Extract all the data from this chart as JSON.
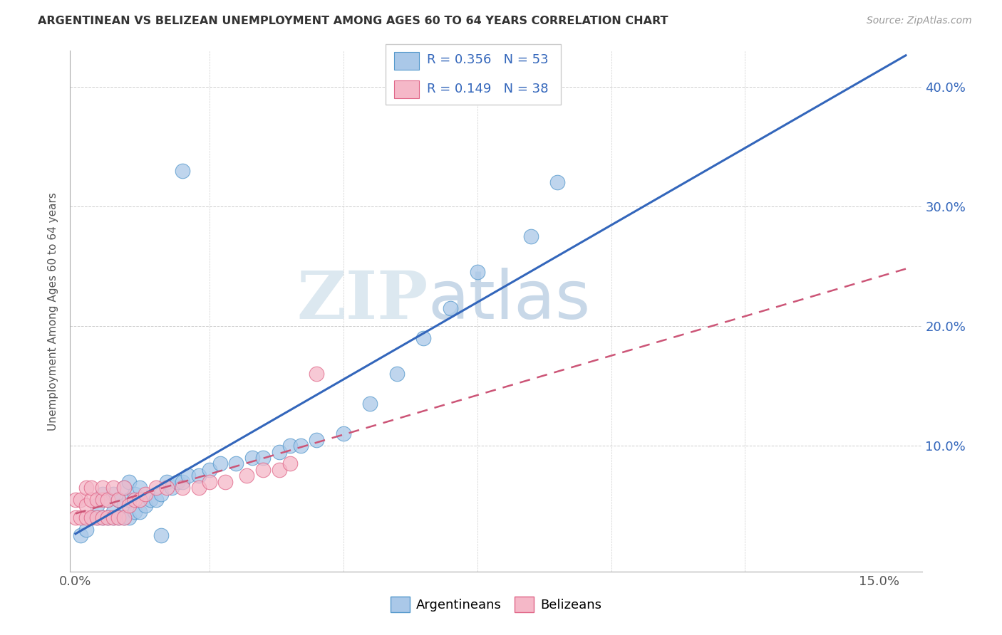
{
  "title": "ARGENTINEAN VS BELIZEAN UNEMPLOYMENT AMONG AGES 60 TO 64 YEARS CORRELATION CHART",
  "source": "Source: ZipAtlas.com",
  "ylabel_label": "Unemployment Among Ages 60 to 64 years",
  "xlim": [
    -0.001,
    0.158
  ],
  "ylim": [
    -0.005,
    0.43
  ],
  "argentinean_color": "#aac8e8",
  "argentinean_edge": "#5599cc",
  "belizean_color": "#f5b8c8",
  "belizean_edge": "#e06688",
  "trend_arg_color": "#3366bb",
  "trend_bel_color": "#cc5577",
  "legend_R_arg": "R = 0.356",
  "legend_N_arg": "N = 53",
  "legend_R_bel": "R = 0.149",
  "legend_N_bel": "N = 38",
  "legend_text_color": "#3366bb",
  "watermark_zip": "ZIP",
  "watermark_atlas": "atlas",
  "grid_color": "#cccccc",
  "background_color": "#ffffff",
  "arg_x": [
    0.001,
    0.002,
    0.003,
    0.004,
    0.004,
    0.005,
    0.005,
    0.006,
    0.006,
    0.007,
    0.007,
    0.007,
    0.008,
    0.008,
    0.009,
    0.009,
    0.009,
    0.01,
    0.01,
    0.01,
    0.011,
    0.011,
    0.012,
    0.012,
    0.013,
    0.014,
    0.015,
    0.016,
    0.017,
    0.018,
    0.019,
    0.02,
    0.021,
    0.023,
    0.025,
    0.027,
    0.03,
    0.033,
    0.035,
    0.038,
    0.04,
    0.042,
    0.045,
    0.05,
    0.055,
    0.06,
    0.065,
    0.07,
    0.075,
    0.085,
    0.09,
    0.02,
    0.016
  ],
  "arg_y": [
    0.025,
    0.03,
    0.04,
    0.04,
    0.05,
    0.04,
    0.06,
    0.04,
    0.055,
    0.04,
    0.045,
    0.06,
    0.04,
    0.055,
    0.04,
    0.05,
    0.065,
    0.04,
    0.055,
    0.07,
    0.045,
    0.06,
    0.045,
    0.065,
    0.05,
    0.055,
    0.055,
    0.06,
    0.07,
    0.065,
    0.07,
    0.07,
    0.075,
    0.075,
    0.08,
    0.085,
    0.085,
    0.09,
    0.09,
    0.095,
    0.1,
    0.1,
    0.105,
    0.11,
    0.135,
    0.16,
    0.19,
    0.215,
    0.245,
    0.275,
    0.32,
    0.33,
    0.025
  ],
  "bel_x": [
    0.0,
    0.0,
    0.001,
    0.001,
    0.002,
    0.002,
    0.002,
    0.003,
    0.003,
    0.003,
    0.004,
    0.004,
    0.005,
    0.005,
    0.005,
    0.006,
    0.006,
    0.007,
    0.007,
    0.008,
    0.008,
    0.009,
    0.009,
    0.01,
    0.011,
    0.012,
    0.013,
    0.015,
    0.017,
    0.02,
    0.023,
    0.025,
    0.028,
    0.032,
    0.035,
    0.038,
    0.04,
    0.045
  ],
  "bel_y": [
    0.04,
    0.055,
    0.04,
    0.055,
    0.04,
    0.05,
    0.065,
    0.04,
    0.055,
    0.065,
    0.04,
    0.055,
    0.04,
    0.055,
    0.065,
    0.04,
    0.055,
    0.04,
    0.065,
    0.04,
    0.055,
    0.04,
    0.065,
    0.05,
    0.055,
    0.055,
    0.06,
    0.065,
    0.065,
    0.065,
    0.065,
    0.07,
    0.07,
    0.075,
    0.08,
    0.08,
    0.085,
    0.16
  ]
}
